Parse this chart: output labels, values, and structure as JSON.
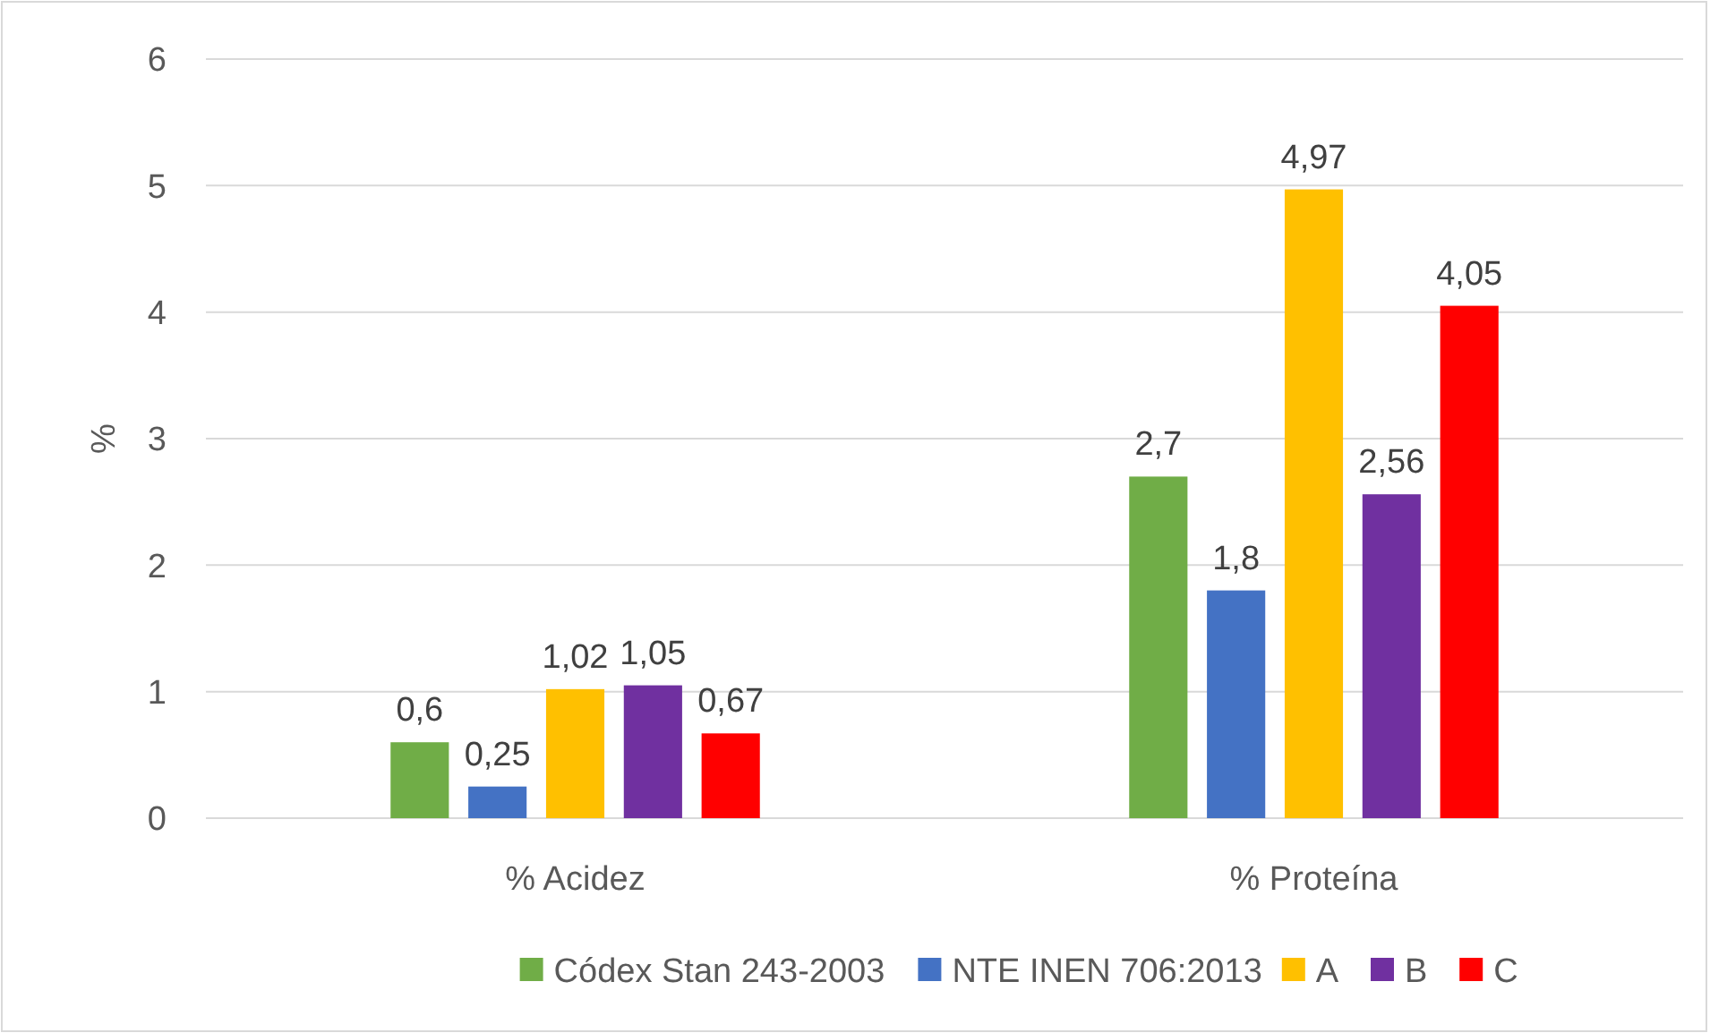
{
  "chart_data": {
    "type": "bar",
    "ylabel": "%",
    "categories": [
      "% Acidez",
      "% Proteína"
    ],
    "series": [
      {
        "name": "Códex Stan 243-2003",
        "color": "#70ad47",
        "values": [
          0.6,
          2.7
        ],
        "value_labels": [
          "0,6",
          "2,7"
        ]
      },
      {
        "name": "NTE INEN 706:2013",
        "color": "#4472c4",
        "values": [
          0.25,
          1.8
        ],
        "value_labels": [
          "0,25",
          "1,8"
        ]
      },
      {
        "name": "A",
        "color": "#ffc000",
        "values": [
          1.02,
          4.97
        ],
        "value_labels": [
          "1,02",
          "4,97"
        ]
      },
      {
        "name": "B",
        "color": "#7030a0",
        "values": [
          1.05,
          2.56
        ],
        "value_labels": [
          "1,05",
          "2,56"
        ]
      },
      {
        "name": "C",
        "color": "#ff0000",
        "values": [
          0.67,
          4.05
        ],
        "value_labels": [
          "0,67",
          "4,05"
        ]
      }
    ],
    "ylim": [
      0,
      6
    ],
    "yticks": [
      0,
      1,
      2,
      3,
      4,
      5,
      6
    ],
    "grid": "y",
    "legend": "bottom"
  }
}
